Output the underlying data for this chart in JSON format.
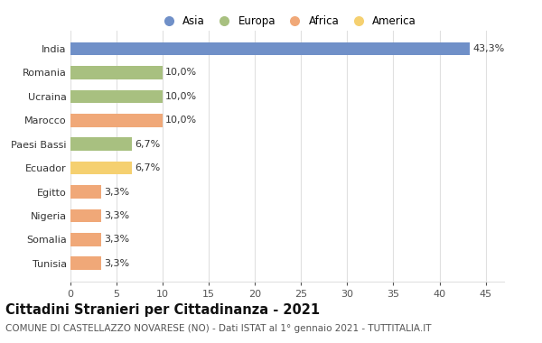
{
  "countries": [
    "Tunisia",
    "Somalia",
    "Nigeria",
    "Egitto",
    "Ecuador",
    "Paesi Bassi",
    "Marocco",
    "Ucraina",
    "Romania",
    "India"
  ],
  "values": [
    3.3,
    3.3,
    3.3,
    3.3,
    6.7,
    6.7,
    10.0,
    10.0,
    10.0,
    43.3
  ],
  "labels": [
    "3,3%",
    "3,3%",
    "3,3%",
    "3,3%",
    "6,7%",
    "6,7%",
    "10,0%",
    "10,0%",
    "10,0%",
    "43,3%"
  ],
  "colors": [
    "#F0A878",
    "#F0A878",
    "#F0A878",
    "#F0A878",
    "#F5D070",
    "#A8C080",
    "#F0A878",
    "#A8C080",
    "#A8C080",
    "#7090C8"
  ],
  "legend_labels": [
    "Asia",
    "Europa",
    "Africa",
    "America"
  ],
  "legend_colors": [
    "#7090C8",
    "#A8C080",
    "#F0A878",
    "#F5D070"
  ],
  "title": "Cittadini Stranieri per Cittadinanza - 2021",
  "subtitle": "COMUNE DI CASTELLAZZO NOVARESE (NO) - Dati ISTAT al 1° gennaio 2021 - TUTTITALIA.IT",
  "xlim": [
    0,
    47
  ],
  "xticks": [
    0,
    5,
    10,
    15,
    20,
    25,
    30,
    35,
    40,
    45
  ],
  "background_color": "#ffffff",
  "grid_color": "#e0e0e0",
  "title_fontsize": 10.5,
  "subtitle_fontsize": 7.5,
  "label_fontsize": 8,
  "tick_fontsize": 8,
  "legend_fontsize": 8.5,
  "bar_height": 0.55
}
